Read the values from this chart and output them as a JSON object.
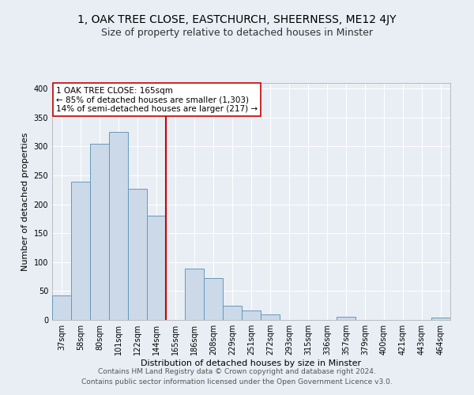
{
  "title": "1, OAK TREE CLOSE, EASTCHURCH, SHEERNESS, ME12 4JY",
  "subtitle": "Size of property relative to detached houses in Minster",
  "xlabel": "Distribution of detached houses by size in Minster",
  "ylabel": "Number of detached properties",
  "bar_labels": [
    "37sqm",
    "58sqm",
    "80sqm",
    "101sqm",
    "122sqm",
    "144sqm",
    "165sqm",
    "186sqm",
    "208sqm",
    "229sqm",
    "251sqm",
    "272sqm",
    "293sqm",
    "315sqm",
    "336sqm",
    "357sqm",
    "379sqm",
    "400sqm",
    "421sqm",
    "443sqm",
    "464sqm"
  ],
  "bar_values": [
    42,
    239,
    305,
    325,
    227,
    180,
    0,
    89,
    73,
    25,
    16,
    10,
    0,
    0,
    0,
    5,
    0,
    0,
    0,
    0,
    4
  ],
  "bar_color": "#ccd9e8",
  "bar_edge_color": "#6699bb",
  "vline_x_index": 6,
  "vline_color": "#cc0000",
  "ylim": [
    0,
    410
  ],
  "yticks": [
    0,
    50,
    100,
    150,
    200,
    250,
    300,
    350,
    400
  ],
  "annotation_title": "1 OAK TREE CLOSE: 165sqm",
  "annotation_line1": "← 85% of detached houses are smaller (1,303)",
  "annotation_line2": "14% of semi-detached houses are larger (217) →",
  "footer1": "Contains HM Land Registry data © Crown copyright and database right 2024.",
  "footer2": "Contains public sector information licensed under the Open Government Licence v3.0.",
  "background_color": "#e8eef4",
  "plot_background": "#e8eef4",
  "grid_color": "#ffffff",
  "title_fontsize": 10,
  "subtitle_fontsize": 9,
  "axis_label_fontsize": 8,
  "tick_fontsize": 7,
  "annotation_fontsize": 7.5,
  "footer_fontsize": 6.5
}
